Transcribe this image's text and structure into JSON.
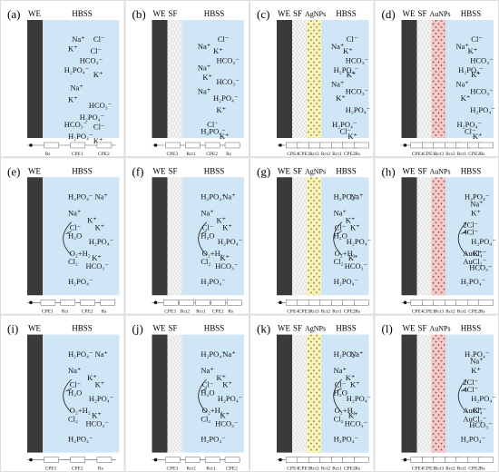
{
  "panels": [
    {
      "label": "(a)",
      "layers": [
        "WE"
      ],
      "medium": "HBSS",
      "variant": "ions1",
      "circuit": [
        "Rs",
        "CPE1",
        "CPE2"
      ]
    },
    {
      "label": "(b)",
      "layers": [
        "WE",
        "SF"
      ],
      "medium": "HBSS",
      "variant": "ions2",
      "circuit": [
        "CPE3",
        "Rct1",
        "CPE2",
        "Rs"
      ]
    },
    {
      "label": "(c)",
      "layers": [
        "WE",
        "SF",
        "AgNPs"
      ],
      "medium": "HBSS",
      "variant": "ions3",
      "circuit": [
        "CPE4",
        "CPE3",
        "Rct3",
        "Rct2",
        "Rct1",
        "CPE2",
        "Rs"
      ]
    },
    {
      "label": "(d)",
      "layers": [
        "WE",
        "SF",
        "AuNPs"
      ],
      "medium": "HBSS",
      "variant": "ions3",
      "circuit": [
        "CPE4",
        "CPE3",
        "Rct3",
        "Rct2",
        "Rct1",
        "CPE2",
        "Rs"
      ]
    },
    {
      "label": "(e)",
      "layers": [
        "WE"
      ],
      "medium": "HBSS",
      "variant": "chlorine",
      "circuit": [
        "CPE1",
        "Rct",
        "CPE2",
        "Rs"
      ]
    },
    {
      "label": "(f)",
      "layers": [
        "WE",
        "SF"
      ],
      "medium": "HBSS",
      "variant": "chlorine",
      "circuit": [
        "CPE3",
        "Rct2",
        "Rct1",
        "CPE2",
        "Rs"
      ]
    },
    {
      "label": "(g)",
      "layers": [
        "WE",
        "SF",
        "AgNPs"
      ],
      "medium": "HBSS",
      "variant": "chlorine",
      "circuit": [
        "CPE4",
        "CPE3",
        "Rct3",
        "Rct2",
        "Rct1",
        "CPE2",
        "Rs"
      ]
    },
    {
      "label": "(h)",
      "layers": [
        "WE",
        "SF",
        "AuNPs"
      ],
      "medium": "HBSS",
      "variant": "gold",
      "circuit": [
        "CPE4",
        "CPE3",
        "Rct3",
        "Rct2",
        "Rct1",
        "CPE2",
        "Rs"
      ]
    },
    {
      "label": "(i)",
      "layers": [
        "WE"
      ],
      "medium": "HBSS",
      "variant": "chlorine",
      "circuit": [
        "CPE1",
        "CPE2",
        "Rs"
      ]
    },
    {
      "label": "(j)",
      "layers": [
        "WE",
        "SF"
      ],
      "medium": "HBSS",
      "variant": "chlorine",
      "circuit": [
        "CPE3",
        "Rct2",
        "Rct1",
        "CPE2"
      ]
    },
    {
      "label": "(k)",
      "layers": [
        "WE",
        "SF",
        "AgNPs"
      ],
      "medium": "HBSS",
      "variant": "chlorine",
      "circuit": [
        "CPE4",
        "CPE3",
        "Rct3",
        "Rct2",
        "Rct1",
        "CPE2",
        "Rs"
      ]
    },
    {
      "label": "(l)",
      "layers": [
        "WE",
        "SF",
        "AuNPs"
      ],
      "medium": "HBSS",
      "variant": "gold",
      "circuit": [
        "CPE4",
        "CPE3",
        "Rct3",
        "Rct2",
        "Rct1",
        "CPE2",
        "Rs"
      ]
    }
  ],
  "ion_sets": {
    "ions1": [
      "Na⁺",
      "Cl⁻",
      "K⁺",
      "Cl⁻",
      "HCO₃⁻",
      "H₂PO₄⁻",
      "K⁺",
      "Na⁺",
      "K⁺",
      "HCO₃⁻",
      "H₂PO₄⁻",
      "HCO₃⁻",
      "Cl⁻",
      "H₂PO₄⁻",
      "K⁺"
    ],
    "ions2": [
      "Cl⁻",
      "Na⁺",
      "K⁺",
      "HCO₃⁻",
      "Na⁺",
      "K⁺",
      "HCO₃⁻",
      "Na⁺",
      "H₂PO₄⁻",
      "K⁺",
      "Cl⁻",
      "H₂PO₄⁻",
      "K⁺"
    ],
    "ions3": [
      "Cl⁻",
      "Na⁺",
      "K⁺",
      "HCO₃⁻",
      "H₂PO₄⁻",
      "K⁺",
      "Na⁺",
      "HCO₃⁻",
      "K⁺",
      "H₂PO₄⁻",
      "H₂PO₄⁻",
      "Cl⁻",
      "K⁺"
    ],
    "chlorine": [
      "H₂PO₄⁻",
      "Na⁺",
      "Na⁺",
      "K⁺",
      "Cl⁻",
      "K⁺",
      "H₂O",
      "H₂PO₄⁻",
      "O₂+H₂",
      "K⁺",
      "Cl₂",
      "HCO₃⁻",
      "H₂PO₄⁻"
    ],
    "gold": [
      "H₂PO₄⁻",
      "Na⁺",
      "K⁺",
      "2Cl⁻",
      "4Cl⁻",
      "H₂PO₄⁻",
      "AuCl₄⁻",
      "K⁺",
      "AuCl₂⁻",
      "HCO₃⁻",
      "H₂PO₄⁻"
    ]
  },
  "colors": {
    "electrode": "#3a3a3a",
    "hbss": "#cfe6f6",
    "silk": "#f2f2f2",
    "agnps": "#faf3b5",
    "aunps": "#f3c9c9",
    "panel_border": "#d0d0d0"
  }
}
